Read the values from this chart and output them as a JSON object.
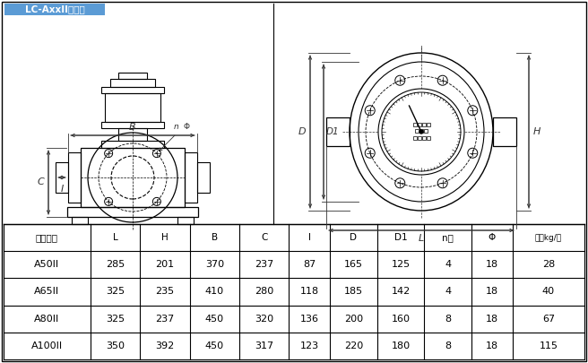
{
  "title": "LC-AxxII型轻型",
  "title_bg": "#5b9bd5",
  "title_text_color": "white",
  "table_headers": [
    "公称通径",
    "L",
    "H",
    "B",
    "C",
    "I",
    "D",
    "D1",
    "n个",
    "Φ",
    "重量kg/台"
  ],
  "table_rows": [
    [
      "A50II",
      "285",
      "201",
      "370",
      "237",
      "87",
      "165",
      "125",
      "4",
      "18",
      "28"
    ],
    [
      "A65II",
      "325",
      "235",
      "410",
      "280",
      "118",
      "185",
      "142",
      "4",
      "18",
      "40"
    ],
    [
      "A80II",
      "325",
      "237",
      "450",
      "320",
      "136",
      "200",
      "160",
      "8",
      "18",
      "67"
    ],
    [
      "A100II",
      "350",
      "392",
      "450",
      "317",
      "123",
      "220",
      "180",
      "8",
      "18",
      "115"
    ]
  ],
  "bg_color": "white",
  "line_color": "black",
  "dim_color": "#333333"
}
